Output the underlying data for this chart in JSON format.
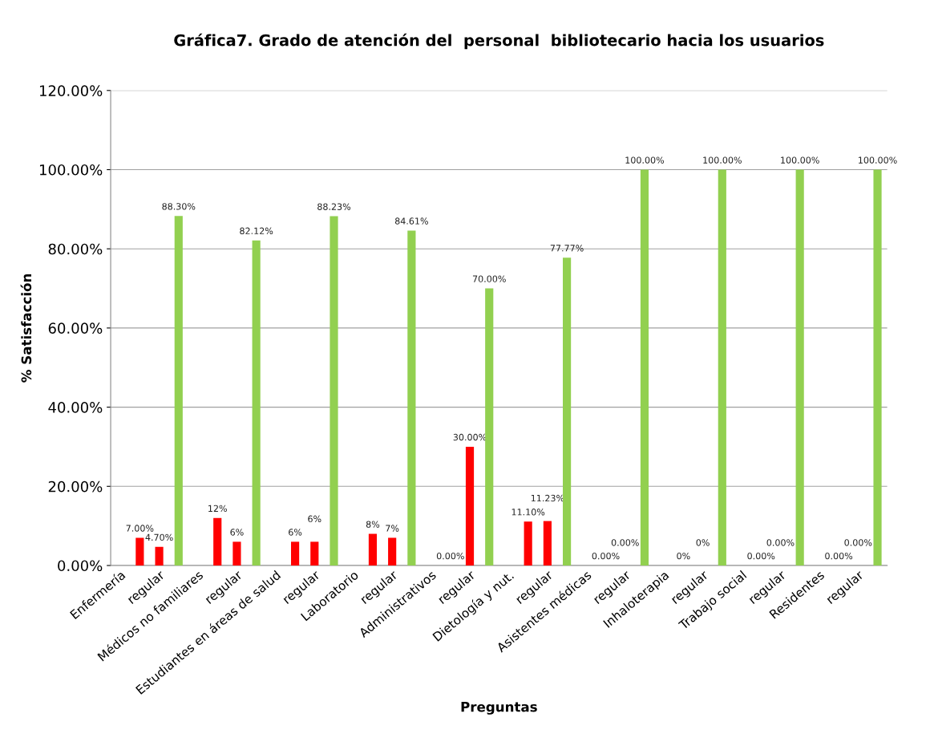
{
  "chart_data": {
    "type": "bar",
    "title": "Gráfica7. Grado de atención del  personal  bibliotecario hacia los usuarios",
    "xlabel": "Preguntas",
    "ylabel": "% Satisfacción",
    "categories": [
      "Enfermería",
      null,
      "regular",
      null,
      "Médicos no familiares",
      null,
      "regular",
      null,
      "Estudiantes en áreas de salud",
      null,
      "regular",
      null,
      "Laboratorio",
      null,
      "regular",
      null,
      "Administrativos",
      null,
      "regular",
      null,
      "Dietología y nut.",
      null,
      "regular",
      null,
      "Asistentes médicas",
      null,
      "regular",
      null,
      "Inhaloterapia",
      null,
      "regular",
      null,
      "Trabajo social",
      null,
      "regular",
      null,
      "Residentes",
      null,
      "regular",
      null
    ],
    "series": [
      {
        "color": "#ff0000",
        "values": [
          null,
          7.0,
          null,
          null,
          null,
          12,
          null,
          null,
          null,
          6,
          null,
          null,
          null,
          8,
          null,
          null,
          null,
          0,
          null,
          null,
          null,
          11.1,
          null,
          null,
          null,
          0,
          null,
          null,
          null,
          0,
          null,
          null,
          null,
          0,
          null,
          null,
          null,
          0,
          null,
          null
        ],
        "value_labels": [
          null,
          "7.00%",
          null,
          null,
          null,
          "12%",
          null,
          null,
          null,
          "6%",
          null,
          null,
          null,
          "8%",
          null,
          null,
          null,
          "0.00%",
          null,
          null,
          null,
          "11.10%",
          null,
          null,
          null,
          "0.00%",
          null,
          null,
          null,
          "0%",
          null,
          null,
          null,
          "0.00%",
          null,
          null,
          null,
          "0.00%",
          null,
          null
        ]
      },
      {
        "color": "#ff0000",
        "values": [
          null,
          null,
          4.7,
          null,
          null,
          null,
          6,
          null,
          null,
          null,
          6,
          null,
          null,
          null,
          7,
          null,
          null,
          null,
          30,
          null,
          null,
          null,
          11.23,
          null,
          null,
          null,
          0,
          null,
          null,
          null,
          0,
          null,
          null,
          null,
          0,
          null,
          null,
          null,
          0,
          null
        ],
        "value_labels": [
          null,
          null,
          "4.70%",
          null,
          null,
          null,
          "6%",
          null,
          null,
          null,
          "6%",
          null,
          null,
          null,
          "7%",
          null,
          null,
          null,
          "30.00%",
          null,
          null,
          null,
          "11.23%",
          null,
          null,
          null,
          "0.00%",
          null,
          null,
          null,
          "0%",
          null,
          null,
          null,
          "0.00%",
          null,
          null,
          null,
          "0.00%",
          null
        ]
      },
      {
        "color": "#92d050",
        "values": [
          null,
          null,
          null,
          88.3,
          null,
          null,
          null,
          82.12,
          null,
          null,
          null,
          88.23,
          null,
          null,
          null,
          84.61,
          null,
          null,
          null,
          70,
          null,
          null,
          null,
          77.77,
          null,
          null,
          null,
          100,
          null,
          null,
          null,
          100,
          null,
          null,
          null,
          100,
          null,
          null,
          null,
          100
        ],
        "value_labels": [
          null,
          null,
          null,
          "88.30%",
          null,
          null,
          null,
          "82.12%",
          null,
          null,
          null,
          "88.23%",
          null,
          null,
          null,
          "84.61%",
          null,
          null,
          null,
          "70.00%",
          null,
          null,
          null,
          "77.77%",
          null,
          null,
          null,
          "100.00%",
          null,
          null,
          null,
          "100.00%",
          null,
          null,
          null,
          "100.00%",
          null,
          null,
          null,
          "100.00%"
        ]
      }
    ],
    "ylim": [
      0,
      120
    ],
    "yticks": [
      {
        "value": 0,
        "label": "0.00%"
      },
      {
        "value": 20,
        "label": "20.00%"
      },
      {
        "value": 40,
        "label": "40.00%"
      },
      {
        "value": 60,
        "label": "60.00%"
      },
      {
        "value": 80,
        "label": "80.00%"
      },
      {
        "value": 100,
        "label": "100.00%"
      },
      {
        "value": 120,
        "label": "120.00%"
      }
    ],
    "grid": "y"
  }
}
